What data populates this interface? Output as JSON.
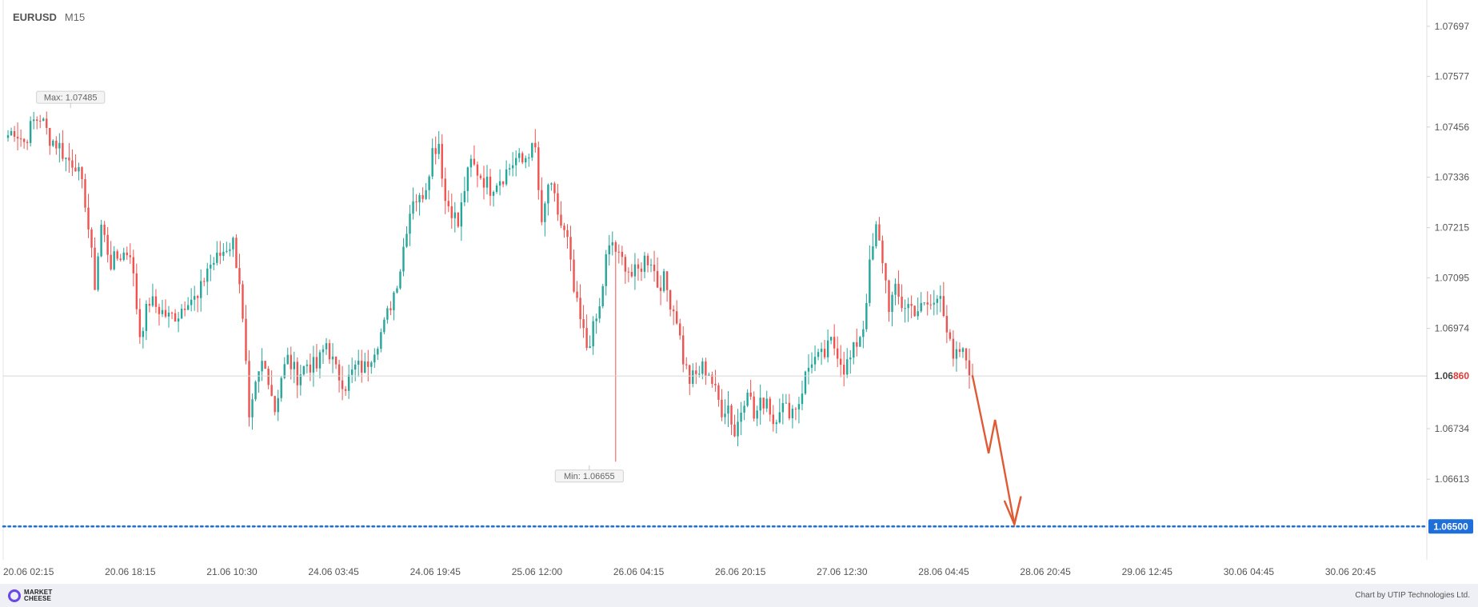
{
  "header": {
    "symbol": "EURUSD",
    "timeframe": "M15"
  },
  "footer": {
    "logo_line1": "MARKET",
    "logo_line2": "CHEESE",
    "credit": "Chart by UTIP Technologies Ltd."
  },
  "colors": {
    "up": "#26a69a",
    "down": "#ef5350",
    "target": "#1e6fd9",
    "arrow": "#e05a33",
    "last": "#e53935"
  },
  "chart_data": {
    "type": "candlestick",
    "symbol": "EURUSD",
    "timeframe": "M15",
    "ylim": [
      1.0642,
      1.0776
    ],
    "y_ticks": [
      "1.07697",
      "1.07577",
      "1.07456",
      "1.07336",
      "1.07215",
      "1.07095",
      "1.06974",
      "1.06860",
      "1.06734",
      "1.06613",
      "1.06500"
    ],
    "x_ticks": [
      "20.06 02:15",
      "20.06 18:15",
      "21.06 10:30",
      "24.06 03:45",
      "24.06 19:45",
      "25.06 12:00",
      "26.06 04:15",
      "26.06 20:15",
      "27.06 12:30",
      "28.06 04:45",
      "28.06 20:45",
      "29.06 12:45",
      "30.06 04:45",
      "30.06 20:45"
    ],
    "price_series": [
      [
        0,
        1.0743
      ],
      [
        3,
        1.0745
      ],
      [
        6,
        1.0742
      ],
      [
        9,
        1.0747
      ],
      [
        11,
        1.0748
      ],
      [
        14,
        1.0743
      ],
      [
        17,
        1.0741
      ],
      [
        19,
        1.0738
      ],
      [
        22,
        1.0737
      ],
      [
        25,
        1.0728
      ],
      [
        28,
        1.0708
      ],
      [
        30,
        1.0722
      ],
      [
        33,
        1.0713
      ],
      [
        36,
        1.0715
      ],
      [
        39,
        1.0716
      ],
      [
        42,
        1.0696
      ],
      [
        45,
        1.0704
      ],
      [
        48,
        1.0702
      ],
      [
        51,
        1.07
      ],
      [
        54,
        1.0701
      ],
      [
        57,
        1.0705
      ],
      [
        60,
        1.0704
      ],
      [
        63,
        1.0712
      ],
      [
        66,
        1.0714
      ],
      [
        69,
        1.0717
      ],
      [
        71,
        1.0718
      ],
      [
        73,
        1.0709
      ],
      [
        75,
        1.0688
      ],
      [
        76,
        1.0674
      ],
      [
        78,
        1.0683
      ],
      [
        80,
        1.0689
      ],
      [
        82,
        1.0686
      ],
      [
        84,
        1.0678
      ],
      [
        86,
        1.0686
      ],
      [
        88,
        1.069
      ],
      [
        91,
        1.0686
      ],
      [
        94,
        1.0689
      ],
      [
        97,
        1.0688
      ],
      [
        100,
        1.0694
      ],
      [
        103,
        1.0687
      ],
      [
        106,
        1.0684
      ],
      [
        109,
        1.0688
      ],
      [
        112,
        1.0688
      ],
      [
        115,
        1.0693
      ],
      [
        118,
        1.0698
      ],
      [
        121,
        1.0706
      ],
      [
        123,
        1.0712
      ],
      [
        125,
        1.0722
      ],
      [
        127,
        1.0729
      ],
      [
        129,
        1.0728
      ],
      [
        131,
        1.0732
      ],
      [
        133,
        1.074
      ],
      [
        135,
        1.0742
      ],
      [
        137,
        1.0728
      ],
      [
        139,
        1.0726
      ],
      [
        141,
        1.0722
      ],
      [
        143,
        1.0731
      ],
      [
        145,
        1.0737
      ],
      [
        147,
        1.0735
      ],
      [
        149,
        1.0733
      ],
      [
        151,
        1.0731
      ],
      [
        153,
        1.0733
      ],
      [
        155,
        1.0734
      ],
      [
        157,
        1.0736
      ],
      [
        159,
        1.0738
      ],
      [
        161,
        1.0737
      ],
      [
        163,
        1.074
      ],
      [
        165,
        1.074
      ],
      [
        167,
        1.0721
      ],
      [
        169,
        1.0732
      ],
      [
        171,
        1.0728
      ],
      [
        173,
        1.0722
      ],
      [
        175,
        1.0718
      ],
      [
        177,
        1.0706
      ],
      [
        179,
        1.0699
      ],
      [
        181,
        1.0693
      ],
      [
        183,
        1.0697
      ],
      [
        185,
        1.0702
      ],
      [
        187,
        1.0714
      ],
      [
        189,
        1.0718
      ],
      [
        191,
        1.0714
      ],
      [
        193,
        1.0713
      ],
      [
        195,
        1.071
      ],
      [
        197,
        1.0711
      ],
      [
        199,
        1.0714
      ],
      [
        201,
        1.0714
      ],
      [
        203,
        1.0708
      ],
      [
        205,
        1.0709
      ],
      [
        207,
        1.0704
      ],
      [
        209,
        1.07
      ],
      [
        211,
        1.069
      ],
      [
        213,
        1.0685
      ],
      [
        215,
        1.0686
      ],
      [
        217,
        1.0688
      ],
      [
        219,
        1.0687
      ],
      [
        221,
        1.0682
      ],
      [
        223,
        1.0678
      ],
      [
        225,
        1.0679
      ],
      [
        227,
        1.0672
      ],
      [
        229,
        1.0678
      ],
      [
        231,
        1.0684
      ],
      [
        233,
        1.0676
      ],
      [
        235,
        1.0679
      ],
      [
        237,
        1.0681
      ],
      [
        239,
        1.0675
      ],
      [
        241,
        1.0679
      ],
      [
        243,
        1.0678
      ],
      [
        245,
        1.0678
      ],
      [
        247,
        1.068
      ],
      [
        249,
        1.0686
      ],
      [
        251,
        1.069
      ],
      [
        253,
        1.069
      ],
      [
        255,
        1.0691
      ],
      [
        257,
        1.0694
      ],
      [
        259,
        1.0692
      ],
      [
        261,
        1.0688
      ],
      [
        263,
        1.069
      ],
      [
        265,
        1.0694
      ],
      [
        267,
        1.0698
      ],
      [
        269,
        1.0712
      ],
      [
        271,
        1.0721
      ],
      [
        273,
        1.0714
      ],
      [
        275,
        1.0703
      ],
      [
        277,
        1.0706
      ],
      [
        279,
        1.0703
      ],
      [
        281,
        1.0703
      ],
      [
        283,
        1.0702
      ],
      [
        285,
        1.0702
      ],
      [
        287,
        1.0703
      ],
      [
        289,
        1.0703
      ],
      [
        291,
        1.0707
      ],
      [
        293,
        1.0697
      ],
      [
        295,
        1.0689
      ],
      [
        297,
        1.0692
      ],
      [
        299,
        1.069
      ],
      [
        301,
        1.0686
      ]
    ],
    "min_label": "Min: 1.06655",
    "max_label": "Max: 1.07485",
    "min_price": 1.06655,
    "max_price": 1.07485,
    "last_price": 1.0686,
    "last_price_label": {
      "prefix": "1.06",
      "highlight": "860"
    },
    "target_price": 1.065,
    "target_label": "1.06500",
    "forecast_path": [
      [
        301,
        1.0686
      ],
      [
        306,
        1.06675
      ],
      [
        308,
        1.06755
      ],
      [
        314,
        1.06505
      ],
      [
        316,
        1.0657
      ]
    ],
    "forecast_arrowhead": [
      [
        311,
        1.0656
      ],
      [
        314,
        1.06505
      ],
      [
        316,
        1.0657
      ]
    ]
  }
}
